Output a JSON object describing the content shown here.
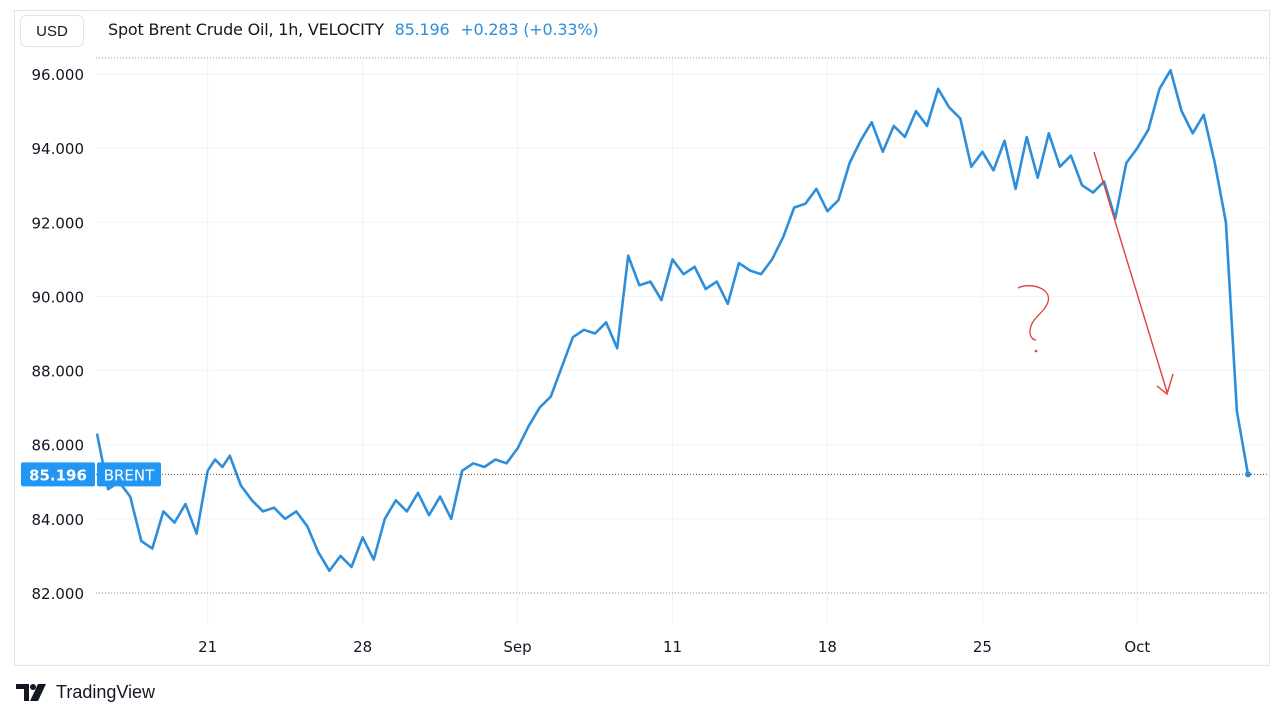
{
  "header": {
    "currency": "USD",
    "title": "Spot Brent Crude Oil, 1h, VELOCITY",
    "last": "85.196",
    "change": "+0.283 (+0.33%)"
  },
  "price_label": {
    "value": "85.196",
    "symbol": "BRENT"
  },
  "annotation": {
    "text": "?"
  },
  "footer": {
    "brand": "TradingView"
  },
  "colors": {
    "line": "#2e8ed9",
    "label_bg": "#2196f3",
    "annotation": "#e23d3d",
    "grid": "#f0f3fa"
  },
  "chart_data": {
    "type": "line",
    "title": "Spot Brent Crude Oil, 1h, VELOCITY",
    "ylim": [
      81.5,
      96.5
    ],
    "y_ticks": [
      "96.000",
      "94.000",
      "92.000",
      "90.000",
      "88.000",
      "86.000",
      "84.000",
      "82.000"
    ],
    "y_tick_values": [
      96,
      94,
      92,
      90,
      88,
      86,
      84,
      82
    ],
    "x_ticks": [
      "21",
      "28",
      "Sep",
      "11",
      "18",
      "25",
      "Oct"
    ],
    "x_tick_dates": [
      "2023-08-21",
      "2023-08-28",
      "2023-09-04",
      "2023-09-11",
      "2023-09-18",
      "2023-09-25",
      "2023-10-02"
    ],
    "xlim": [
      "2023-08-16",
      "2023-10-07"
    ],
    "grid": true,
    "series": [
      {
        "name": "BRENT",
        "points": [
          [
            "2023-08-16",
            86.3
          ],
          [
            "2023-08-16T12:00",
            84.8
          ],
          [
            "2023-08-17",
            85.0
          ],
          [
            "2023-08-17T12:00",
            84.6
          ],
          [
            "2023-08-18",
            83.4
          ],
          [
            "2023-08-18T12:00",
            83.2
          ],
          [
            "2023-08-19",
            84.2
          ],
          [
            "2023-08-19T12:00",
            83.9
          ],
          [
            "2023-08-20",
            84.4
          ],
          [
            "2023-08-20T12:00",
            83.6
          ],
          [
            "2023-08-21",
            85.3
          ],
          [
            "2023-08-21T08:00",
            85.6
          ],
          [
            "2023-08-21T16:00",
            85.4
          ],
          [
            "2023-08-22",
            85.7
          ],
          [
            "2023-08-22T12:00",
            84.9
          ],
          [
            "2023-08-23",
            84.5
          ],
          [
            "2023-08-23T12:00",
            84.2
          ],
          [
            "2023-08-24",
            84.3
          ],
          [
            "2023-08-24T12:00",
            84.0
          ],
          [
            "2023-08-25",
            84.2
          ],
          [
            "2023-08-25T12:00",
            83.8
          ],
          [
            "2023-08-26",
            83.1
          ],
          [
            "2023-08-26T12:00",
            82.6
          ],
          [
            "2023-08-27",
            83.0
          ],
          [
            "2023-08-27T12:00",
            82.7
          ],
          [
            "2023-08-28",
            83.5
          ],
          [
            "2023-08-28T12:00",
            82.9
          ],
          [
            "2023-08-29",
            84.0
          ],
          [
            "2023-08-29T12:00",
            84.5
          ],
          [
            "2023-08-30",
            84.2
          ],
          [
            "2023-08-30T12:00",
            84.7
          ],
          [
            "2023-08-31",
            84.1
          ],
          [
            "2023-08-31T12:00",
            84.6
          ],
          [
            "2023-09-01",
            84.0
          ],
          [
            "2023-09-01T12:00",
            85.3
          ],
          [
            "2023-09-02",
            85.5
          ],
          [
            "2023-09-02T12:00",
            85.4
          ],
          [
            "2023-09-03",
            85.6
          ],
          [
            "2023-09-03T12:00",
            85.5
          ],
          [
            "2023-09-04",
            85.9
          ],
          [
            "2023-09-04T12:00",
            86.5
          ],
          [
            "2023-09-05",
            87.0
          ],
          [
            "2023-09-05T12:00",
            87.3
          ],
          [
            "2023-09-06",
            88.1
          ],
          [
            "2023-09-06T12:00",
            88.9
          ],
          [
            "2023-09-07",
            89.1
          ],
          [
            "2023-09-07T12:00",
            89.0
          ],
          [
            "2023-09-08",
            89.3
          ],
          [
            "2023-09-08T12:00",
            88.6
          ],
          [
            "2023-09-09",
            91.1
          ],
          [
            "2023-09-09T12:00",
            90.3
          ],
          [
            "2023-09-10",
            90.4
          ],
          [
            "2023-09-10T12:00",
            89.9
          ],
          [
            "2023-09-11",
            91.0
          ],
          [
            "2023-09-11T12:00",
            90.6
          ],
          [
            "2023-09-12",
            90.8
          ],
          [
            "2023-09-12T12:00",
            90.2
          ],
          [
            "2023-09-13",
            90.4
          ],
          [
            "2023-09-13T12:00",
            89.8
          ],
          [
            "2023-09-14",
            90.9
          ],
          [
            "2023-09-14T12:00",
            90.7
          ],
          [
            "2023-09-15",
            90.6
          ],
          [
            "2023-09-15T12:00",
            91.0
          ],
          [
            "2023-09-16",
            91.6
          ],
          [
            "2023-09-16T12:00",
            92.4
          ],
          [
            "2023-09-17",
            92.5
          ],
          [
            "2023-09-17T12:00",
            92.9
          ],
          [
            "2023-09-18",
            92.3
          ],
          [
            "2023-09-18T12:00",
            92.6
          ],
          [
            "2023-09-19",
            93.6
          ],
          [
            "2023-09-19T12:00",
            94.2
          ],
          [
            "2023-09-20",
            94.7
          ],
          [
            "2023-09-20T12:00",
            93.9
          ],
          [
            "2023-09-21",
            94.6
          ],
          [
            "2023-09-21T12:00",
            94.3
          ],
          [
            "2023-09-22",
            95.0
          ],
          [
            "2023-09-22T12:00",
            94.6
          ],
          [
            "2023-09-23",
            95.6
          ],
          [
            "2023-09-23T12:00",
            95.1
          ],
          [
            "2023-09-24",
            94.8
          ],
          [
            "2023-09-24T12:00",
            93.5
          ],
          [
            "2023-09-25",
            93.9
          ],
          [
            "2023-09-25T12:00",
            93.4
          ],
          [
            "2023-09-26",
            94.2
          ],
          [
            "2023-09-26T12:00",
            92.9
          ],
          [
            "2023-09-27",
            94.3
          ],
          [
            "2023-09-27T12:00",
            93.2
          ],
          [
            "2023-09-28",
            94.4
          ],
          [
            "2023-09-28T12:00",
            93.5
          ],
          [
            "2023-09-29",
            93.8
          ],
          [
            "2023-09-29T12:00",
            93.0
          ],
          [
            "2023-09-30",
            92.8
          ],
          [
            "2023-09-30T12:00",
            93.1
          ],
          [
            "2023-10-01",
            92.1
          ],
          [
            "2023-10-01T12:00",
            93.6
          ],
          [
            "2023-10-02",
            94.0
          ],
          [
            "2023-10-02T12:00",
            94.5
          ],
          [
            "2023-10-03",
            95.6
          ],
          [
            "2023-10-03T12:00",
            96.1
          ],
          [
            "2023-10-04",
            95.0
          ],
          [
            "2023-10-04T12:00",
            94.4
          ],
          [
            "2023-10-05",
            94.9
          ],
          [
            "2023-10-05T12:00",
            93.6
          ],
          [
            "2023-10-06",
            92.0
          ],
          [
            "2023-10-06T12:00",
            86.9
          ],
          [
            "2023-10-07",
            85.2
          ]
        ]
      }
    ]
  }
}
